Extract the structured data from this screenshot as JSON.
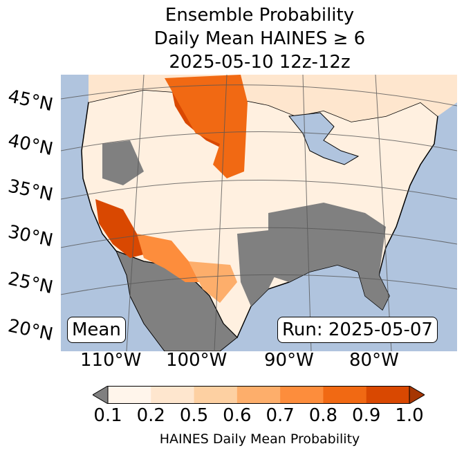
{
  "title": {
    "line1": "Ensemble Probability",
    "line2": "Daily Mean HAINES ≥ 6",
    "line3": "2025-05-10 12z-12z"
  },
  "map": {
    "latitude_labels": [
      "45°N",
      "40°N",
      "35°N",
      "30°N",
      "25°N",
      "20°N"
    ],
    "longitude_labels": [
      "110°W",
      "100°W",
      "90°W",
      "80°W"
    ],
    "mean_label": "Mean",
    "run_label": "Run: 2025-05-07",
    "colors": {
      "ocean": "#b0c4de",
      "land_low": "#808080",
      "water_lakes": "#b0c4de"
    }
  },
  "colorbar": {
    "ticks": [
      "0.1",
      "0.2",
      "0.5",
      "0.6",
      "0.7",
      "0.8",
      "0.9",
      "1.0"
    ],
    "colors": [
      "#fff5eb",
      "#fee6ce",
      "#fdd0a2",
      "#fdae6b",
      "#fd8d3c",
      "#f16913",
      "#d94801",
      "#a63603"
    ],
    "under_color": "#808080",
    "label": "HAINES Daily Mean Probability"
  }
}
